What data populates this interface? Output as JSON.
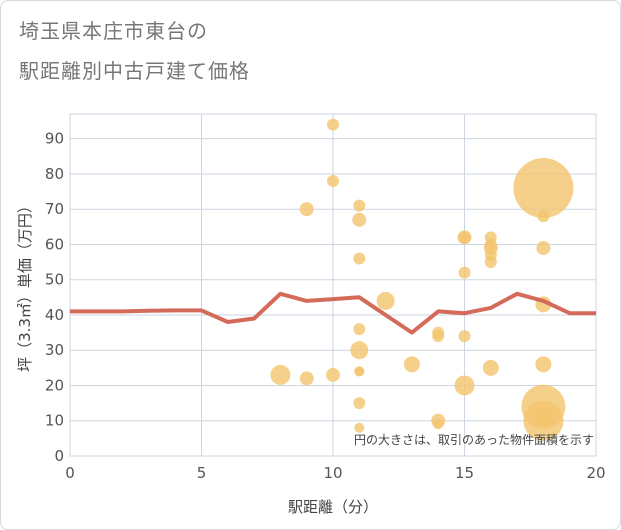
{
  "title_line1": "埼玉県本庄市東台の",
  "title_line2": "駅距離別中古戸建て価格",
  "chart_data": {
    "type": "scatter",
    "xlabel": "駅距離（分）",
    "ylabel": "坪（3.3㎡）単価（万円）",
    "xlim": [
      0,
      20
    ],
    "ylim": [
      0,
      97
    ],
    "x_ticks": [
      0,
      5,
      10,
      15,
      20
    ],
    "y_ticks": [
      0,
      10,
      20,
      30,
      40,
      50,
      60,
      70,
      80,
      90
    ],
    "note": "円の大きさは、取引のあった物件面積を示す",
    "colors": {
      "bubble": "#f2c46e",
      "line": "#d46b5a",
      "grid": "#cdd5e0"
    },
    "points": [
      {
        "x": 8,
        "y": 23,
        "size": 10
      },
      {
        "x": 9,
        "y": 70,
        "size": 7
      },
      {
        "x": 9,
        "y": 22,
        "size": 7
      },
      {
        "x": 10,
        "y": 94,
        "size": 6
      },
      {
        "x": 10,
        "y": 78,
        "size": 6
      },
      {
        "x": 10,
        "y": 23,
        "size": 7
      },
      {
        "x": 11,
        "y": 71,
        "size": 6
      },
      {
        "x": 11,
        "y": 67,
        "size": 7
      },
      {
        "x": 11,
        "y": 56,
        "size": 6
      },
      {
        "x": 11,
        "y": 36,
        "size": 6
      },
      {
        "x": 11,
        "y": 30,
        "size": 9
      },
      {
        "x": 11,
        "y": 24,
        "size": 5
      },
      {
        "x": 11,
        "y": 24,
        "size": 5
      },
      {
        "x": 11,
        "y": 15,
        "size": 6
      },
      {
        "x": 11,
        "y": 8,
        "size": 5
      },
      {
        "x": 12,
        "y": 44,
        "size": 9
      },
      {
        "x": 13,
        "y": 26,
        "size": 8
      },
      {
        "x": 14,
        "y": 35,
        "size": 6
      },
      {
        "x": 14,
        "y": 34,
        "size": 6
      },
      {
        "x": 14,
        "y": 10,
        "size": 7
      },
      {
        "x": 14,
        "y": 9,
        "size": 5
      },
      {
        "x": 15,
        "y": 62,
        "size": 7
      },
      {
        "x": 15,
        "y": 62,
        "size": 6
      },
      {
        "x": 15,
        "y": 52,
        "size": 6
      },
      {
        "x": 15,
        "y": 34,
        "size": 6
      },
      {
        "x": 15,
        "y": 20,
        "size": 10
      },
      {
        "x": 16,
        "y": 62,
        "size": 6
      },
      {
        "x": 16,
        "y": 60,
        "size": 6
      },
      {
        "x": 16,
        "y": 59,
        "size": 7
      },
      {
        "x": 16,
        "y": 57,
        "size": 6
      },
      {
        "x": 16,
        "y": 55,
        "size": 6
      },
      {
        "x": 16,
        "y": 25,
        "size": 8
      },
      {
        "x": 18,
        "y": 76,
        "size": 30
      },
      {
        "x": 18,
        "y": 68,
        "size": 6
      },
      {
        "x": 18,
        "y": 59,
        "size": 7
      },
      {
        "x": 18,
        "y": 43,
        "size": 8
      },
      {
        "x": 18,
        "y": 26,
        "size": 8
      },
      {
        "x": 18,
        "y": 14,
        "size": 22
      },
      {
        "x": 18,
        "y": 10,
        "size": 20
      },
      {
        "x": 18,
        "y": 11,
        "size": 8
      }
    ],
    "trend_line": {
      "x": [
        0,
        1,
        2,
        3,
        4,
        5,
        6,
        7,
        8,
        9,
        10,
        11,
        12,
        13,
        14,
        15,
        16,
        17,
        18,
        19,
        20
      ],
      "y": [
        41,
        41,
        41,
        41.2,
        41.3,
        41.3,
        38,
        39,
        46,
        44,
        44.5,
        45,
        40,
        35,
        41,
        40.5,
        42,
        46,
        44,
        40.5,
        40.5
      ]
    }
  }
}
